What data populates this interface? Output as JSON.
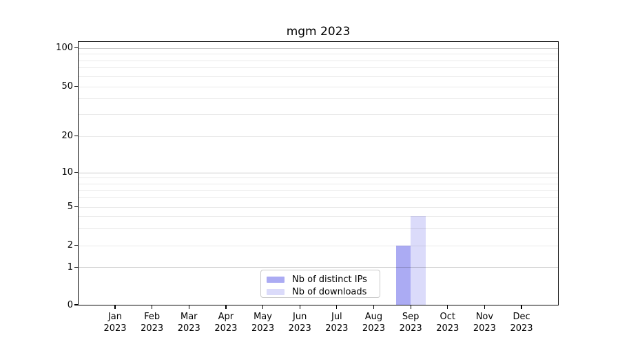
{
  "title": "mgm 2023",
  "chart_data": {
    "type": "bar",
    "title": "mgm 2023",
    "x_axis": {
      "categories": [
        {
          "month": "Jan",
          "year": "2023"
        },
        {
          "month": "Feb",
          "year": "2023"
        },
        {
          "month": "Mar",
          "year": "2023"
        },
        {
          "month": "Apr",
          "year": "2023"
        },
        {
          "month": "May",
          "year": "2023"
        },
        {
          "month": "Jun",
          "year": "2023"
        },
        {
          "month": "Jul",
          "year": "2023"
        },
        {
          "month": "Aug",
          "year": "2023"
        },
        {
          "month": "Sep",
          "year": "2023"
        },
        {
          "month": "Oct",
          "year": "2023"
        },
        {
          "month": "Nov",
          "year": "2023"
        },
        {
          "month": "Dec",
          "year": "2023"
        }
      ]
    },
    "y_axis": {
      "scale": "symlog",
      "ticks": [
        0,
        1,
        2,
        5,
        10,
        20,
        50,
        100
      ],
      "range": [
        0,
        110
      ]
    },
    "series": [
      {
        "name": "Nb of distinct IPs",
        "color": "#ababf3",
        "values": [
          0,
          0,
          0,
          0,
          0,
          0,
          0,
          0,
          2,
          0,
          0,
          0
        ]
      },
      {
        "name": "Nb of downloads",
        "color": "#dbdbfa",
        "values": [
          0,
          0,
          0,
          0,
          0,
          0,
          0,
          0,
          4,
          0,
          0,
          0
        ]
      }
    ],
    "legend": {
      "position": "lower center",
      "entries": [
        "Nb of distinct IPs",
        "Nb of downloads"
      ]
    },
    "grid": {
      "horizontal": true,
      "vertical": false,
      "minor_gridlines": true
    }
  }
}
